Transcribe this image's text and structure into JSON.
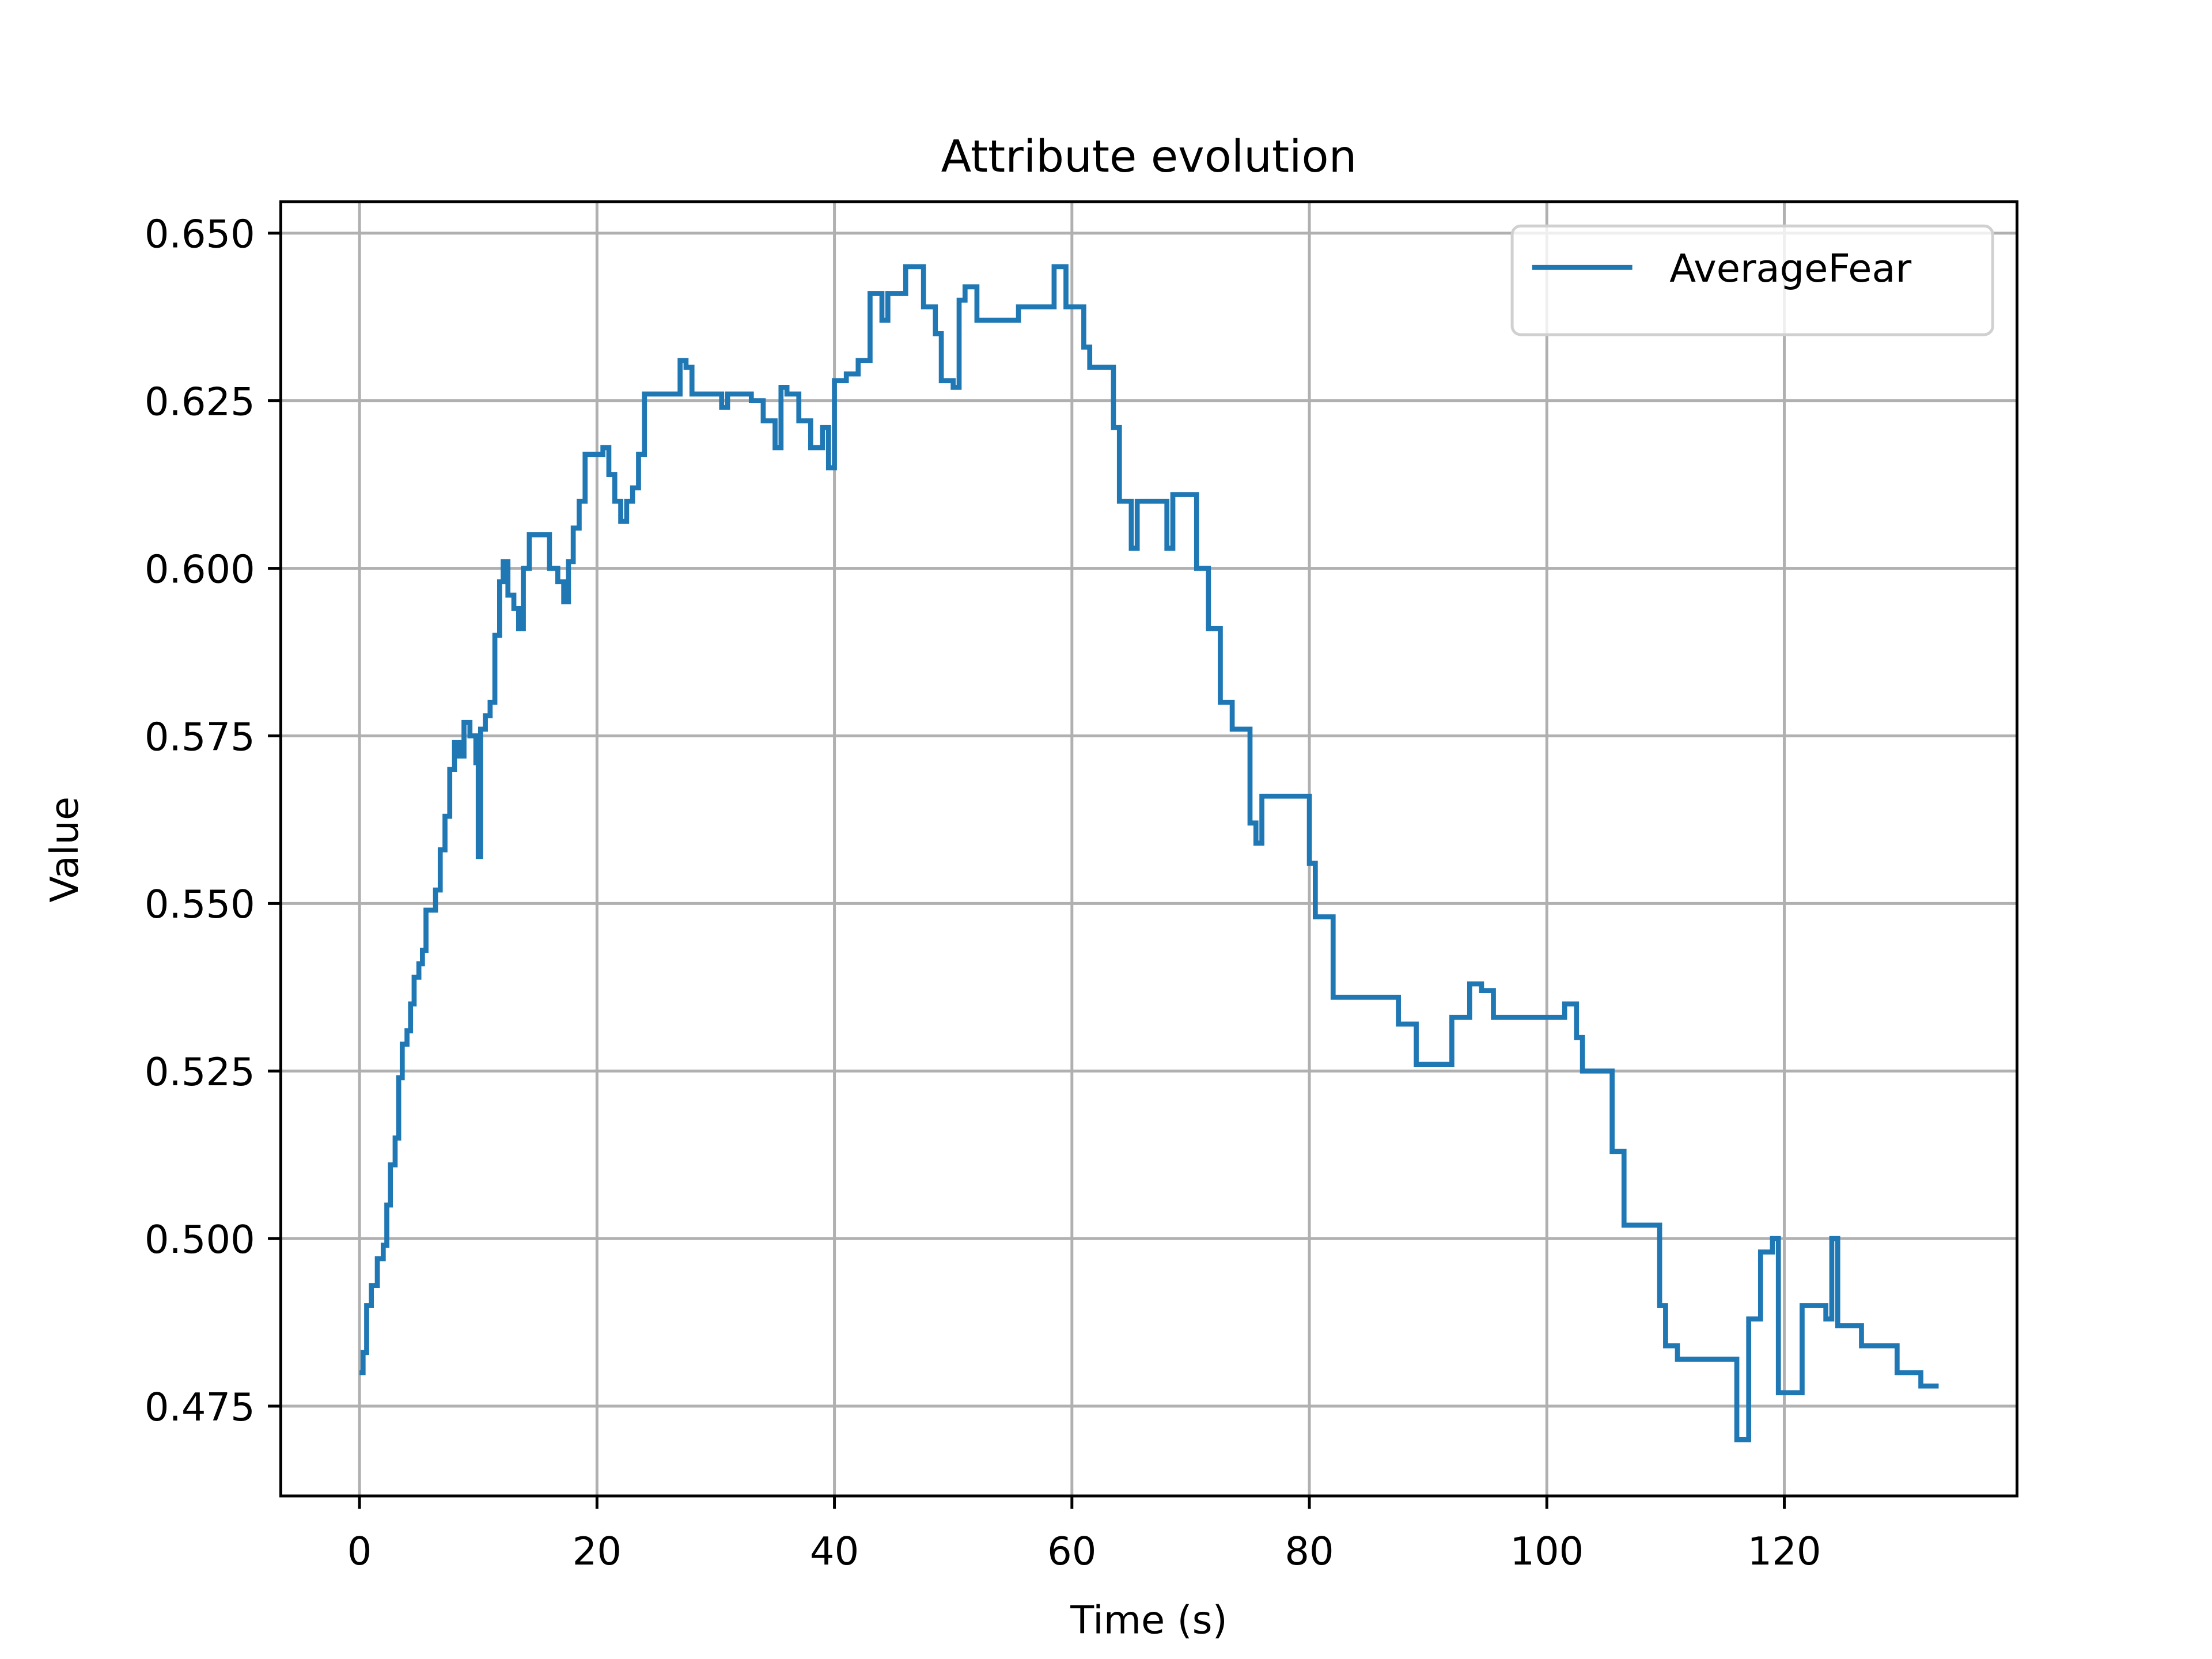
{
  "chart_data": {
    "type": "line",
    "title": "Attribute evolution",
    "xlabel": "Time (s)",
    "ylabel": "Value",
    "drawstyle": "steps-post",
    "grid": true,
    "legend": "upper right",
    "xlim": [
      -6.63,
      139.6
    ],
    "ylim": [
      0.4616,
      0.6547
    ],
    "xticks": [
      0,
      20,
      40,
      60,
      80,
      100,
      120
    ],
    "yticks": [
      0.475,
      {
        "value": 0.5,
        "label": "0.500"
      },
      0.525,
      {
        "value": 0.55,
        "label": "0.550"
      },
      0.575,
      {
        "value": 0.6,
        "label": "0.600"
      },
      0.625,
      {
        "value": 0.65,
        "label": "0.650"
      }
    ],
    "x": [
      0,
      0.3,
      0.6,
      1,
      1.5,
      2,
      2.3,
      2.6,
      3,
      3.3,
      3.6,
      4,
      4.3,
      4.6,
      5,
      5.3,
      5.6,
      6,
      6.4,
      6.8,
      7.2,
      7.6,
      8,
      8.4,
      8.8,
      9.3,
      9.8,
      10,
      10.2,
      10.6,
      11,
      11.4,
      11.8,
      12.1,
      12.5,
      13,
      13.4,
      13.8,
      14.3,
      15,
      16,
      16.7,
      17.2,
      17.6,
      18,
      18.5,
      19,
      20,
      20.5,
      21,
      21.5,
      22,
      22.5,
      23,
      23.5,
      24,
      26,
      27,
      27.5,
      28,
      30,
      30.5,
      31,
      32.5,
      33,
      34,
      35,
      35.5,
      36,
      37,
      38,
      39,
      39.5,
      40,
      41,
      42,
      43,
      44,
      44.5,
      46,
      47.5,
      48.5,
      49,
      50,
      50.5,
      51,
      52,
      53.5,
      55,
      55.5,
      57,
      58.5,
      59.5,
      61,
      61.5,
      62,
      63.5,
      64,
      65,
      65.5,
      68,
      68.5,
      70.5,
      71.5,
      72.5,
      73.5,
      75,
      75.5,
      76,
      80,
      80.5,
      82,
      87.5,
      89,
      92,
      93.5,
      94.5,
      95.5,
      101.5,
      102.5,
      103,
      105.5,
      106.5,
      109.5,
      110,
      111,
      116,
      117,
      118,
      119,
      119.5,
      121.5,
      123.5,
      124,
      124.5,
      126.5,
      129.5,
      131.5,
      133
    ],
    "series": [
      {
        "name": "AverageFear",
        "color": "#1f77b4",
        "values": [
          0.48,
          0.483,
          0.49,
          0.493,
          0.497,
          0.499,
          0.505,
          0.511,
          0.515,
          0.524,
          0.529,
          0.531,
          0.535,
          0.539,
          0.541,
          0.543,
          0.549,
          0.549,
          0.552,
          0.558,
          0.563,
          0.57,
          0.574,
          0.572,
          0.577,
          0.575,
          0.571,
          0.557,
          0.576,
          0.578,
          0.58,
          0.59,
          0.598,
          0.601,
          0.596,
          0.594,
          0.591,
          0.6,
          0.605,
          0.605,
          0.6,
          0.598,
          0.595,
          0.601,
          0.606,
          0.61,
          0.617,
          0.617,
          0.618,
          0.614,
          0.61,
          0.607,
          0.61,
          0.612,
          0.617,
          0.626,
          0.626,
          0.631,
          0.63,
          0.626,
          0.626,
          0.624,
          0.626,
          0.626,
          0.625,
          0.622,
          0.618,
          0.627,
          0.626,
          0.622,
          0.618,
          0.621,
          0.615,
          0.628,
          0.629,
          0.631,
          0.641,
          0.637,
          0.641,
          0.645,
          0.639,
          0.635,
          0.628,
          0.627,
          0.64,
          0.642,
          0.637,
          0.637,
          0.637,
          0.639,
          0.639,
          0.645,
          0.639,
          0.633,
          0.63,
          0.63,
          0.621,
          0.61,
          0.603,
          0.61,
          0.603,
          0.611,
          0.6,
          0.591,
          0.58,
          0.576,
          0.562,
          0.559,
          0.566,
          0.556,
          0.548,
          0.536,
          0.532,
          0.526,
          0.533,
          0.538,
          0.537,
          0.533,
          0.535,
          0.53,
          0.525,
          0.513,
          0.502,
          0.49,
          0.484,
          0.482,
          0.47,
          0.488,
          0.498,
          0.5,
          0.477,
          0.49,
          0.488,
          0.5,
          0.487,
          0.484,
          0.48,
          0.478,
          0.478
        ]
      }
    ]
  }
}
